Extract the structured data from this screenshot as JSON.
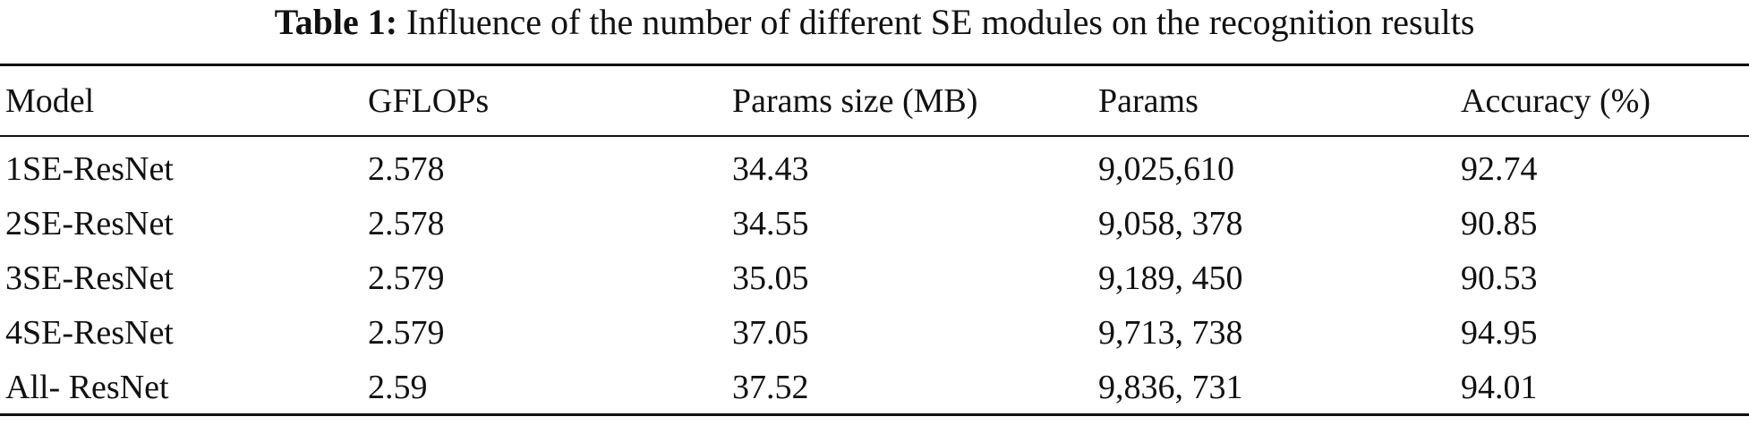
{
  "caption": {
    "label": "Table 1:",
    "text": "Influence of the number of different SE modules on the recognition results"
  },
  "table": {
    "header": [
      "Model",
      "GFLOPs",
      "Params size (MB)",
      "Params",
      "Accuracy (%)"
    ],
    "rows": [
      [
        "1SE-ResNet",
        "2.578",
        "34.43",
        "9,025,610",
        "92.74"
      ],
      [
        "2SE-ResNet",
        "2.578",
        "34.55",
        "9,058, 378",
        "90.85"
      ],
      [
        "3SE-ResNet",
        "2.579",
        "35.05",
        "9,189, 450",
        "90.53"
      ],
      [
        "4SE-ResNet",
        "2.579",
        "37.05",
        "9,713, 738",
        "94.95"
      ],
      [
        "All- ResNet",
        "2.59",
        "37.52",
        "9,836, 731",
        "94.01"
      ]
    ]
  }
}
